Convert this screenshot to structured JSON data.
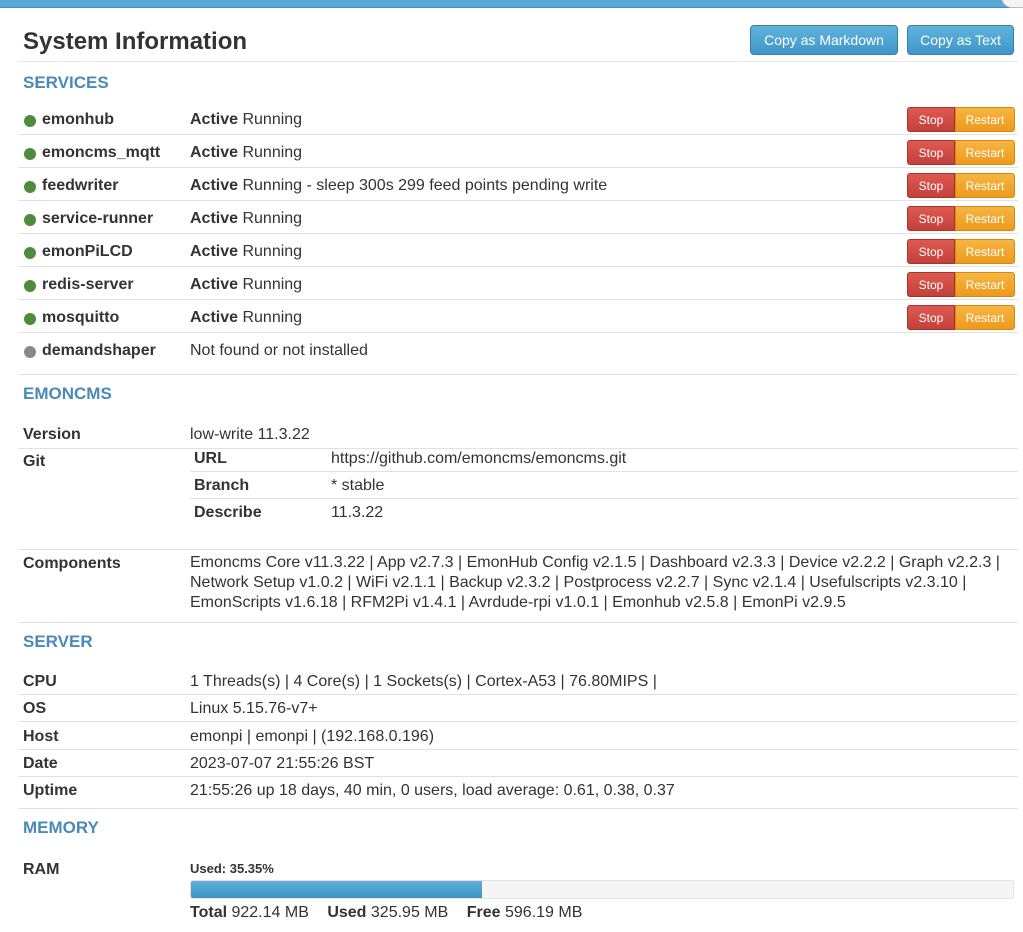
{
  "header": {
    "title": "System Information",
    "copy_markdown_label": "Copy as Markdown",
    "copy_text_label": "Copy as Text"
  },
  "services": {
    "title": "SERVICES",
    "stop_label": "Stop",
    "restart_label": "Restart",
    "items": [
      {
        "name": "emonhub",
        "state": "Active",
        "detail": " Running",
        "status_color": "#4e8c3c"
      },
      {
        "name": "emoncms_mqtt",
        "state": "Active",
        "detail": " Running",
        "status_color": "#4e8c3c"
      },
      {
        "name": "feedwriter",
        "state": "Active",
        "detail": " Running - sleep 300s 299 feed points pending write",
        "status_color": "#4e8c3c"
      },
      {
        "name": "service-runner",
        "state": "Active",
        "detail": " Running",
        "status_color": "#4e8c3c"
      },
      {
        "name": "emonPiLCD",
        "state": "Active",
        "detail": " Running",
        "status_color": "#4e8c3c"
      },
      {
        "name": "redis-server",
        "state": "Active",
        "detail": " Running",
        "status_color": "#4e8c3c"
      },
      {
        "name": "mosquitto",
        "state": "Active",
        "detail": " Running",
        "status_color": "#4e8c3c"
      },
      {
        "name": "demandshaper",
        "state": "",
        "detail": "Not found or not installed",
        "status_color": "#888888"
      }
    ]
  },
  "emoncms": {
    "title": "EMONCMS",
    "version_label": "Version",
    "version_value": "low-write 11.3.22",
    "git_label": "Git",
    "git": {
      "url_label": "URL",
      "url_value": "https://github.com/emoncms/emoncms.git",
      "branch_label": "Branch",
      "branch_value": "* stable",
      "describe_label": "Describe",
      "describe_value": "11.3.22"
    },
    "components_label": "Components",
    "components_value": "Emoncms Core v11.3.22 | App v2.7.3 | EmonHub Config v2.1.5 | Dashboard v2.3.3 | Device v2.2.2 | Graph v2.2.3 | Network Setup v1.0.2 | WiFi v2.1.1 | Backup v2.3.2 | Postprocess v2.2.7 | Sync v2.1.4 | Usefulscripts v2.3.10 | EmonScripts v1.6.18 | RFM2Pi v1.4.1 | Avrdude-rpi v1.0.1 | Emonhub v2.5.8 | EmonPi v2.9.5"
  },
  "server": {
    "title": "SERVER",
    "cpu_label": "CPU",
    "cpu_value": "1 Threads(s) | 4 Core(s) | 1 Sockets(s) | Cortex-A53 | 76.80MIPS |",
    "os_label": "OS",
    "os_value": "Linux 5.15.76-v7+",
    "host_label": "Host",
    "host_value": "emonpi | emonpi | (192.168.0.196)",
    "date_label": "Date",
    "date_value": "2023-07-07 21:55:26 BST",
    "uptime_label": "Uptime",
    "uptime_value": "21:55:26 up 18 days, 40 min, 0 users, load average: 0.61, 0.38, 0.37"
  },
  "memory": {
    "title": "MEMORY",
    "ram_label": "RAM",
    "used_text": "Used: 35.35%",
    "used_fraction": 0.3535,
    "total_label": "Total",
    "total_value": "922.14 MB",
    "used_label": "Used",
    "used_value": "325.95 MB",
    "free_label": "Free",
    "free_value": "596.19 MB"
  }
}
